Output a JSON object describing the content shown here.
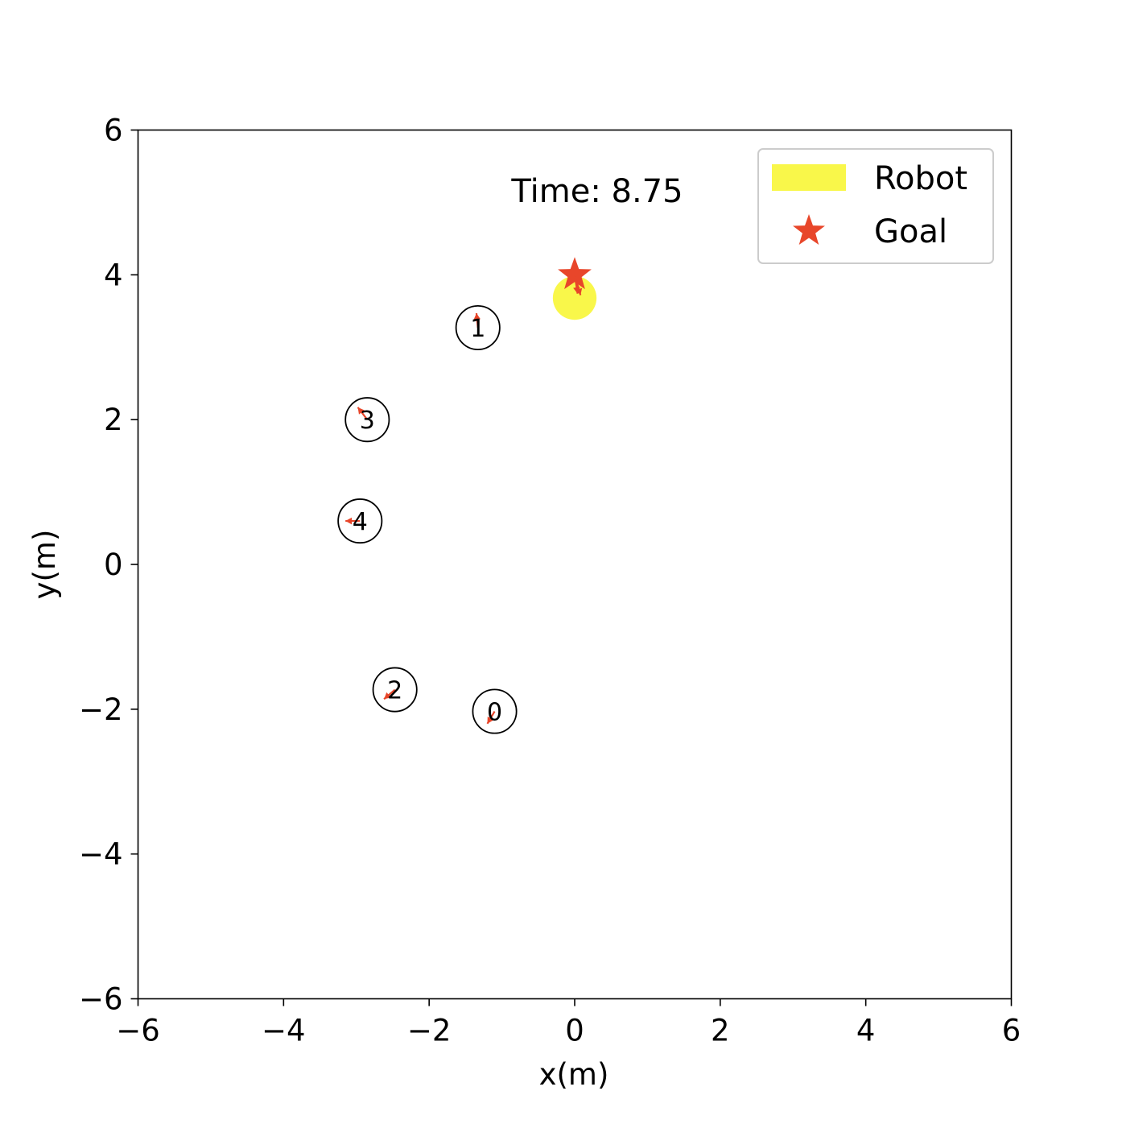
{
  "chart_data": {
    "type": "scatter",
    "title": "",
    "xlabel": "x(m)",
    "ylabel": "y(m)",
    "xlim": [
      -6,
      6
    ],
    "ylim": [
      -6,
      6
    ],
    "xticks": [
      -6,
      -4,
      -2,
      0,
      2,
      4,
      6
    ],
    "yticks": [
      -6,
      -4,
      -2,
      0,
      2,
      4,
      6
    ],
    "xtick_labels": [
      "−6",
      "−4",
      "−2",
      "0",
      "2",
      "4",
      "6"
    ],
    "ytick_labels": [
      "−6",
      "−4",
      "−2",
      "0",
      "2",
      "4",
      "6"
    ],
    "grid": false,
    "annotation": "Time: 8.75",
    "legend": {
      "placement": "top-right",
      "entries": [
        {
          "label": "Robot",
          "color": "#f9f74a",
          "marker": "patch"
        },
        {
          "label": "Goal",
          "color": "#e8462a",
          "marker": "star"
        }
      ]
    },
    "robot": {
      "x": 0.0,
      "y": 3.68,
      "radius": 0.3,
      "color": "#f9f74a",
      "velocity_arrows": [
        {
          "dx": 0.08,
          "dy": -0.28
        },
        {
          "dx": 0.04,
          "dy": -0.26
        }
      ]
    },
    "goal": {
      "x": 0.0,
      "y": 4.0,
      "color": "#e8462a"
    },
    "humans": [
      {
        "id": "0",
        "x": -1.1,
        "y": -2.03,
        "radius": 0.3,
        "arrow": {
          "dx": -0.1,
          "dy": -0.17
        }
      },
      {
        "id": "1",
        "x": -1.33,
        "y": 3.27,
        "radius": 0.3,
        "arrow": {
          "dx": -0.02,
          "dy": 0.2
        }
      },
      {
        "id": "2",
        "x": -2.47,
        "y": -1.73,
        "radius": 0.3,
        "arrow": {
          "dx": -0.15,
          "dy": -0.13
        }
      },
      {
        "id": "3",
        "x": -2.85,
        "y": 2.0,
        "radius": 0.3,
        "arrow": {
          "dx": -0.13,
          "dy": 0.17
        }
      },
      {
        "id": "4",
        "x": -2.95,
        "y": 0.6,
        "radius": 0.3,
        "arrow": {
          "dx": -0.2,
          "dy": 0.0
        }
      }
    ],
    "arrow_color": "#e8462a"
  }
}
